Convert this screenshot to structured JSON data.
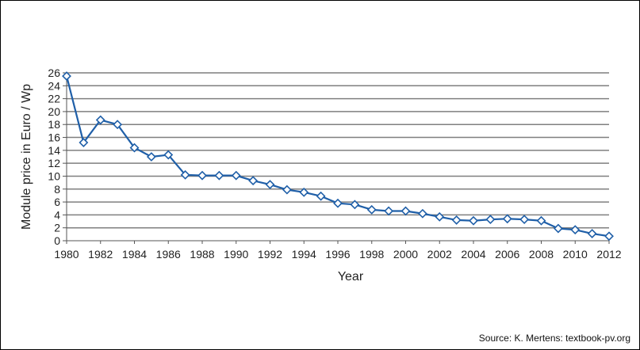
{
  "chart_data": {
    "type": "line",
    "title": "",
    "xlabel": "Year",
    "ylabel": "Module price in Euro / Wp",
    "xlim": [
      1980,
      2012
    ],
    "ylim": [
      0,
      26
    ],
    "x_ticks": [
      1980,
      1982,
      1984,
      1986,
      1988,
      1990,
      1992,
      1994,
      1996,
      1998,
      2000,
      2002,
      2004,
      2006,
      2008,
      2010,
      2012
    ],
    "y_ticks": [
      0,
      2,
      4,
      6,
      8,
      10,
      12,
      14,
      16,
      18,
      20,
      22,
      24,
      26
    ],
    "grid": "horizontal",
    "legend": "none",
    "series": [
      {
        "x": [
          1980,
          1981,
          1982,
          1983,
          1984,
          1985,
          1986,
          1987,
          1988,
          1989,
          1990,
          1991,
          1992,
          1993,
          1994,
          1995,
          1996,
          1997,
          1998,
          1999,
          2000,
          2001,
          2002,
          2003,
          2004,
          2005,
          2006,
          2007,
          2008,
          2009,
          2010,
          2011,
          2012
        ],
        "values": [
          25.5,
          15.2,
          18.7,
          18.0,
          14.4,
          13.0,
          13.3,
          10.2,
          10.1,
          10.1,
          10.1,
          9.3,
          8.7,
          7.9,
          7.5,
          6.9,
          5.8,
          5.6,
          4.8,
          4.6,
          4.6,
          4.2,
          3.7,
          3.2,
          3.1,
          3.3,
          3.4,
          3.3,
          3.1,
          1.9,
          1.7,
          1.1,
          0.7
        ]
      }
    ],
    "colors": {
      "line": "#1f5fa8",
      "marker_fill": "#ffffff",
      "grid": "#7f7f7f",
      "plot_bg": "#ffffff"
    }
  },
  "source_note": "Source: K. Mertens: textbook-pv.org"
}
